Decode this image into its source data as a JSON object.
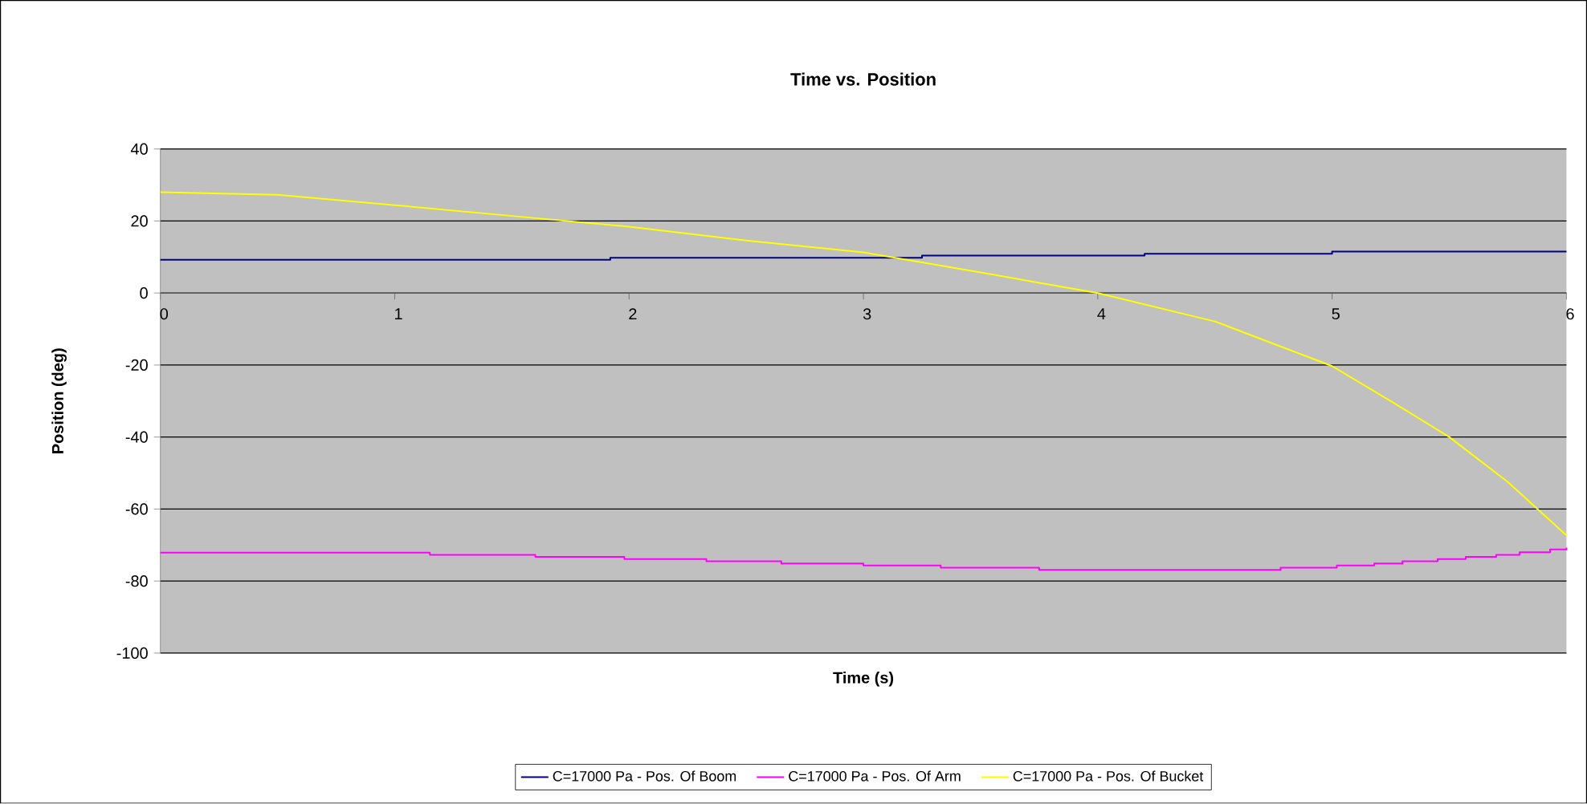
{
  "chart_data": {
    "type": "line",
    "title": "Time vs. Position",
    "xlabel": "Time (s)",
    "ylabel": "Position (deg)",
    "xlim": [
      0,
      6
    ],
    "ylim": [
      -100,
      40
    ],
    "xticks": [
      0,
      1,
      2,
      3,
      4,
      5,
      6
    ],
    "yticks": [
      -100,
      -80,
      -60,
      -40,
      -20,
      0,
      20,
      40
    ],
    "grid": "y",
    "legend": "bottom",
    "series": [
      {
        "name": "C=17000 Pa - Pos. Of Boom",
        "type": "step",
        "color": "#000080",
        "x": [
          0,
          1.92,
          3.25,
          4.2,
          5,
          6
        ],
        "values": [
          9.2,
          9.8,
          10.4,
          10.9,
          11.5,
          11.5
        ]
      },
      {
        "name": "C=17000 Pa - Pos. Of Arm",
        "type": "step",
        "color": "#ff00ff",
        "x": [
          0,
          1.15,
          1.6,
          1.98,
          2.33,
          2.65,
          3.0,
          3.33,
          3.75,
          4.78,
          5.02,
          5.18,
          5.3,
          5.45,
          5.57,
          5.7,
          5.8,
          5.93,
          6
        ],
        "values": [
          -72.1,
          -72.7,
          -73.3,
          -73.9,
          -74.5,
          -75.1,
          -75.7,
          -76.3,
          -76.9,
          -76.3,
          -75.7,
          -75.1,
          -74.5,
          -73.9,
          -73.3,
          -72.7,
          -72.0,
          -71.2,
          -70.7
        ]
      },
      {
        "name": "C=17000 Pa - Pos. Of Bucket",
        "color": "#ffff00",
        "x": [
          0,
          0.5,
          1,
          1.5,
          2,
          2.5,
          3,
          3.5,
          4,
          4.5,
          5,
          5.25,
          5.5,
          5.75,
          6
        ],
        "values": [
          28,
          27.3,
          24.4,
          21.4,
          18.4,
          14.6,
          11.3,
          5.7,
          0,
          -7.9,
          -20.3,
          -30,
          -40,
          -52.5,
          -67.3
        ]
      }
    ]
  }
}
